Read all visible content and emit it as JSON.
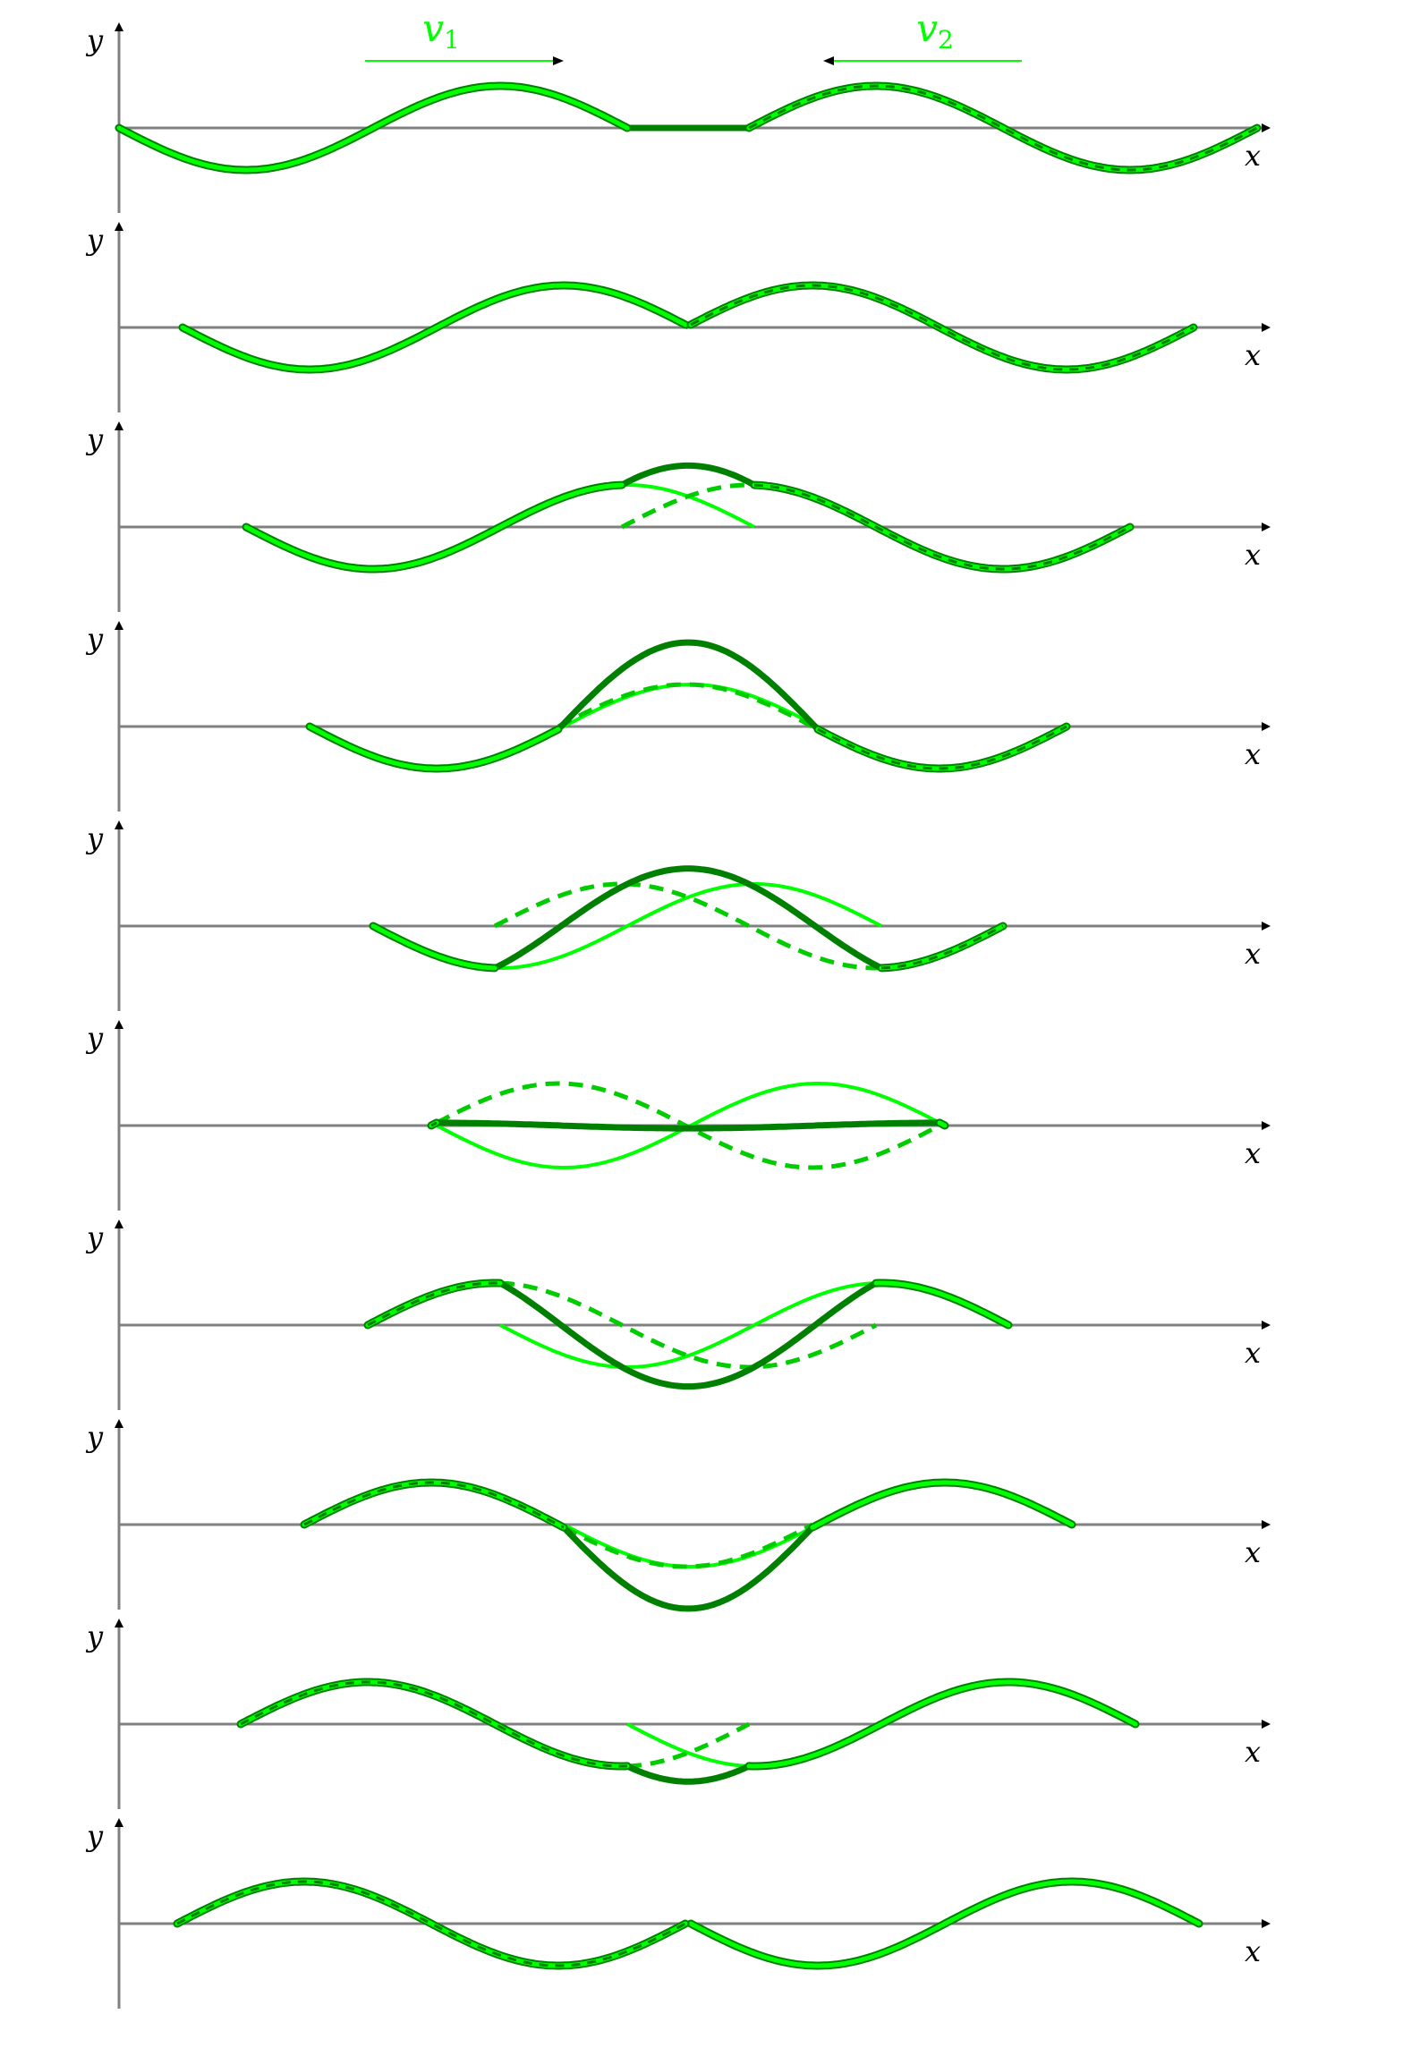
{
  "labels": {
    "x_axis": "x",
    "y_axis": "y",
    "velocity_left": "v",
    "velocity_left_sub": "1",
    "velocity_right": "v",
    "velocity_right_sub": "2"
  },
  "colors": {
    "axis": "#808080",
    "arrowhead": "#000000",
    "wave_light": "#00ff00",
    "wave_dark": "#008000",
    "wave_dashed": "#00cc00",
    "outline": "#008000",
    "velocity": "#00ff00"
  },
  "figure": {
    "panel_count": 10,
    "wave_shape": "single full sine wavelength",
    "wave_1_direction": "right",
    "wave_2_direction": "left",
    "wave_2_phase": "inverted",
    "panel_1_shows_velocity_arrows": true
  }
}
